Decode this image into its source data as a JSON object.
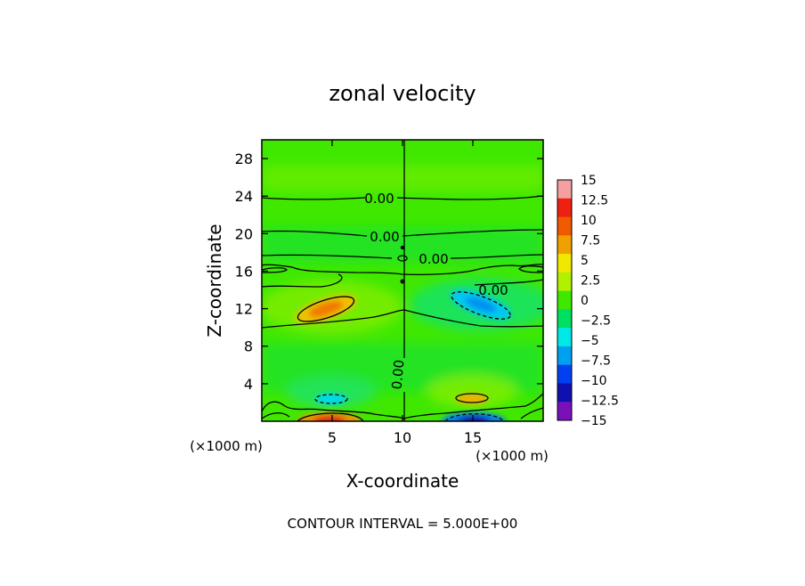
{
  "chart_data": {
    "type": "heatmap",
    "title": "zonal velocity",
    "xlabel": "X-coordinate",
    "ylabel": "Z-coordinate",
    "x_unit_left": "(×1000 m)",
    "x_unit_right": "(×1000 m)",
    "xlim": [
      0,
      20
    ],
    "ylim": [
      0,
      30
    ],
    "xticks": [
      5,
      10,
      15
    ],
    "yticks": [
      4,
      8,
      12,
      16,
      20,
      24,
      28
    ],
    "footer": "CONTOUR INTERVAL = 5.000E+00",
    "colorbar": {
      "levels": [
        15,
        12.5,
        10,
        7.5,
        5,
        2.5,
        0,
        -2.5,
        -5,
        -7.5,
        -10,
        -12.5,
        -15
      ],
      "labels": [
        "15",
        "12.5",
        "10",
        "7.5",
        "5",
        "2.5",
        "0",
        "−2.5",
        "−5",
        "−7.5",
        "−10",
        "−12.5",
        "−15"
      ],
      "colors": [
        "#f4a0a0",
        "#ee2010",
        "#f05a00",
        "#f0a000",
        "#f0e800",
        "#b0f000",
        "#40e800",
        "#00e060",
        "#00e8e8",
        "#00a0f0",
        "#0040f0",
        "#1010b0",
        "#7a10b8"
      ]
    },
    "background_value": 0,
    "features": [
      {
        "x": 4.8,
        "z": 12.0,
        "value": 10
      },
      {
        "x": 15.5,
        "z": 12.0,
        "value": -7.5
      },
      {
        "x": 4.8,
        "z": 2.3,
        "value": -5
      },
      {
        "x": 15.0,
        "z": 2.3,
        "value": 7.5
      },
      {
        "x": 5.0,
        "z": 0.2,
        "value": 12.5
      },
      {
        "x": 15.0,
        "z": 0.2,
        "value": -12.5
      }
    ],
    "contour_labels": [
      "0.00",
      "0.00",
      "0.00",
      "0.00",
      "0.00"
    ]
  }
}
